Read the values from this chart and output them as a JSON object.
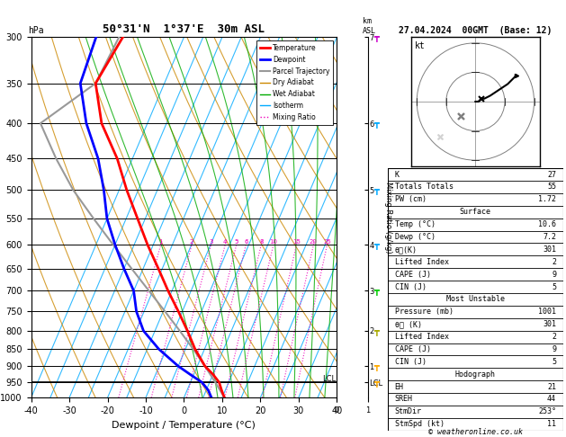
{
  "title_left": "50°31'N  1°37'E  30m ASL",
  "title_date": "27.04.2024  00GMT  (Base: 12)",
  "xlabel": "Dewpoint / Temperature (°C)",
  "ylabel_left": "hPa",
  "pressure_ticks": [
    300,
    350,
    400,
    450,
    500,
    550,
    600,
    650,
    700,
    750,
    800,
    850,
    900,
    950,
    1000
  ],
  "temp_range": [
    -40,
    40
  ],
  "km_ticks": [
    "7",
    "6",
    "5",
    "4",
    "3",
    "2",
    "1",
    "LCL"
  ],
  "km_pressures": [
    300,
    400,
    500,
    600,
    700,
    800,
    900,
    950
  ],
  "lcl_pressure": 950,
  "mixing_ratio_values": [
    1,
    2,
    3,
    4,
    5,
    6,
    8,
    10,
    15,
    20,
    25
  ],
  "temp_profile_p": [
    1000,
    975,
    950,
    925,
    900,
    850,
    800,
    750,
    700,
    650,
    600,
    550,
    500,
    450,
    400,
    350,
    300
  ],
  "temp_profile_t": [
    10.6,
    9.0,
    7.5,
    5.0,
    2.0,
    -2.5,
    -6.5,
    -11.0,
    -16.0,
    -21.0,
    -26.5,
    -32.0,
    -38.0,
    -44.0,
    -52.0,
    -58.0,
    -56.0
  ],
  "dewp_profile_p": [
    1000,
    975,
    950,
    925,
    900,
    850,
    800,
    750,
    700,
    650,
    600,
    550,
    500,
    450,
    400,
    350,
    300
  ],
  "dewp_profile_t": [
    7.2,
    5.5,
    3.0,
    -1.0,
    -5.0,
    -12.0,
    -18.0,
    -22.0,
    -25.0,
    -30.0,
    -35.0,
    -40.0,
    -44.0,
    -49.0,
    -56.0,
    -62.0,
    -63.0
  ],
  "parcel_profile_p": [
    1000,
    950,
    900,
    850,
    800,
    750,
    700,
    650,
    600,
    550,
    500,
    450,
    400,
    350,
    300
  ],
  "parcel_profile_t": [
    10.6,
    6.5,
    2.0,
    -3.0,
    -8.5,
    -14.5,
    -21.0,
    -28.0,
    -35.5,
    -43.5,
    -52.0,
    -60.0,
    -68.0,
    -58.0,
    -57.0
  ],
  "isotherm_color": "#00aaff",
  "dry_adiabat_color": "#cc8800",
  "wet_adiabat_color": "#00aa00",
  "mixing_ratio_color": "#ee00bb",
  "temp_color": "#ff0000",
  "dewpoint_color": "#0000ff",
  "parcel_color": "#999999",
  "legend_items": [
    {
      "label": "Temperature",
      "color": "#ff0000",
      "lw": 2,
      "ls": "-"
    },
    {
      "label": "Dewpoint",
      "color": "#0000ff",
      "lw": 2,
      "ls": "-"
    },
    {
      "label": "Parcel Trajectory",
      "color": "#999999",
      "lw": 1.5,
      "ls": "-"
    },
    {
      "label": "Dry Adiabat",
      "color": "#cc8800",
      "lw": 1,
      "ls": "-"
    },
    {
      "label": "Wet Adiabat",
      "color": "#00aa00",
      "lw": 1,
      "ls": "-"
    },
    {
      "label": "Isotherm",
      "color": "#00aaff",
      "lw": 1,
      "ls": "-"
    },
    {
      "label": "Mixing Ratio",
      "color": "#ee00bb",
      "lw": 1,
      "ls": ":"
    }
  ],
  "info_K": "27",
  "info_TT": "55",
  "info_PW": "1.72",
  "info_surf_temp": "10.6",
  "info_surf_dewp": "7.2",
  "info_surf_theta": "301",
  "info_surf_li": "2",
  "info_surf_cape": "9",
  "info_surf_cin": "5",
  "info_mu_press": "1001",
  "info_mu_theta": "301",
  "info_mu_li": "2",
  "info_mu_cape": "9",
  "info_mu_cin": "5",
  "info_EH": "21",
  "info_SREH": "44",
  "info_StmDir": "253°",
  "info_StmSpd": "11",
  "copyright": "© weatheronline.co.uk",
  "isotherm_temps": [
    -40,
    -35,
    -30,
    -25,
    -20,
    -15,
    -10,
    -5,
    0,
    5,
    10,
    15,
    20,
    25,
    30,
    35,
    40
  ],
  "dry_adiabat_thetas": [
    230,
    240,
    250,
    260,
    270,
    280,
    290,
    300,
    310,
    320,
    330,
    340,
    350,
    360,
    370,
    380,
    390,
    400,
    410,
    420
  ],
  "wet_adiabat_thetas": [
    278,
    282,
    286,
    290,
    294,
    298,
    302,
    306,
    310,
    314,
    318,
    322,
    326,
    330
  ],
  "wind_barb_pressures": [
    300,
    400,
    500,
    600,
    700,
    800,
    900,
    950
  ],
  "wind_barb_colors": [
    "#cc00cc",
    "#00aaff",
    "#00aaff",
    "#00aaff",
    "#00cc00",
    "#aaaa00",
    "#ffaa00",
    "#ffaa00"
  ]
}
